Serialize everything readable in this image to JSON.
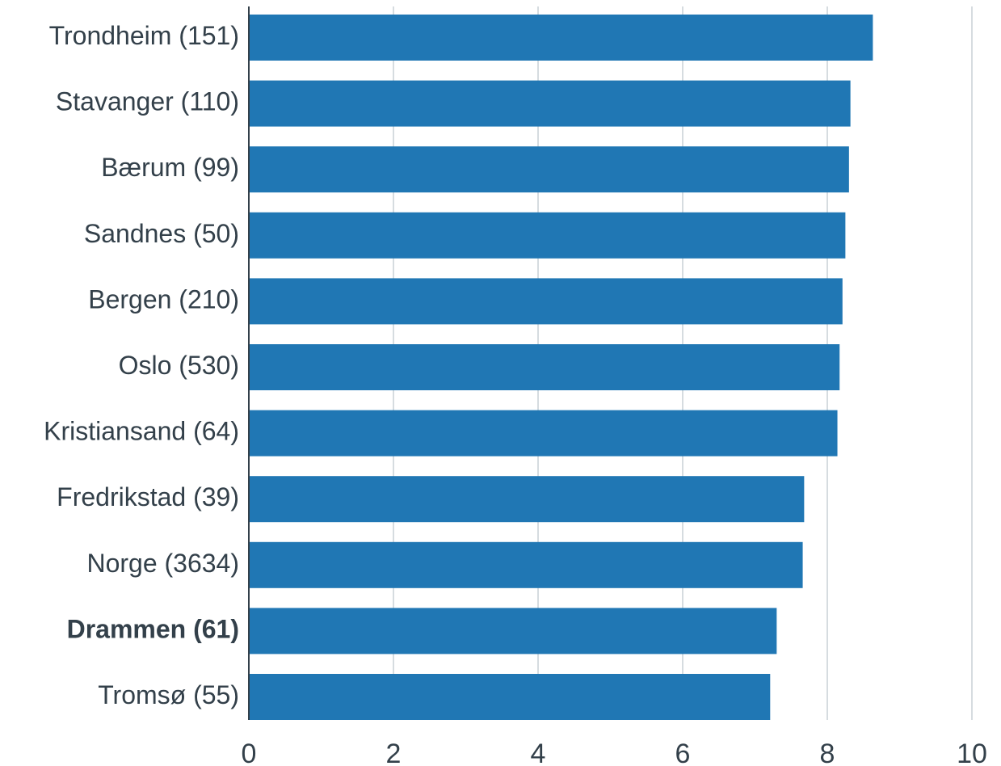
{
  "chart_data": {
    "type": "bar",
    "orientation": "horizontal",
    "title": "",
    "xlabel": "",
    "ylabel": "",
    "xlim": [
      0,
      10
    ],
    "x_ticks": [
      0,
      2,
      4,
      6,
      8,
      10
    ],
    "x_tick_labels": [
      "0",
      "2",
      "4",
      "6",
      "8",
      "10"
    ],
    "grid": "vertical",
    "bar_color": "#2077b4",
    "text_color": "#33404a",
    "grid_color": "#c8d0d6",
    "categories": [
      "Trondheim (151)",
      "Stavanger (110)",
      "Bærum (99)",
      "Sandnes (50)",
      "Bergen (210)",
      "Oslo (530)",
      "Kristiansand (64)",
      "Fredrikstad (39)",
      "Norge (3634)",
      "Drammen (61)",
      "Tromsø (55)"
    ],
    "values": [
      8.63,
      8.32,
      8.3,
      8.25,
      8.21,
      8.17,
      8.14,
      7.68,
      7.66,
      7.3,
      7.21
    ],
    "highlighted_category": "Drammen (61)"
  }
}
